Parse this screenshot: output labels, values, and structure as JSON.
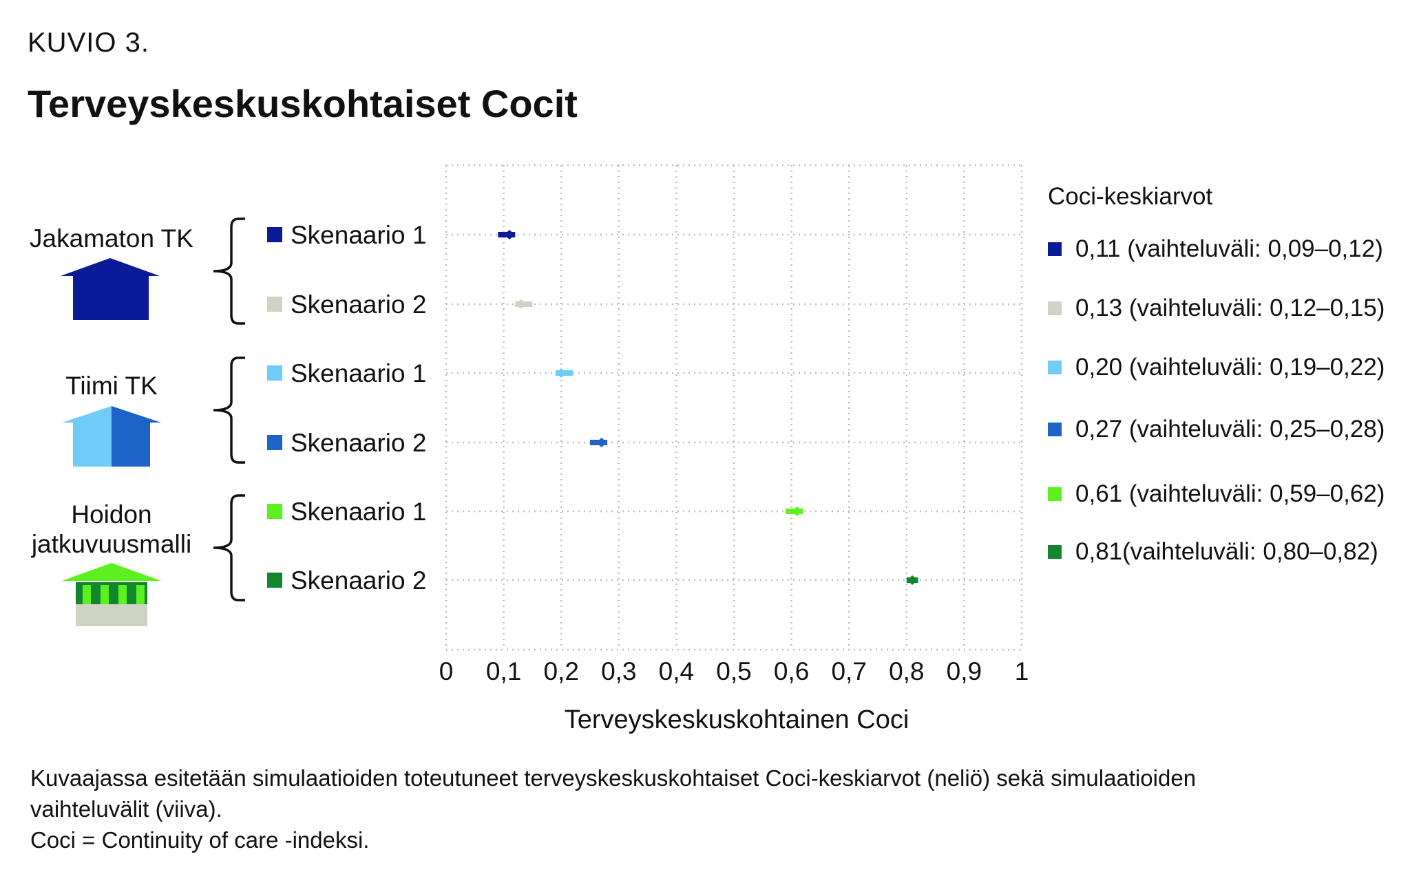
{
  "figure_label": "KUVIO 3.",
  "title": "Terveyskeskuskohtaiset Cocit",
  "groups": [
    {
      "label_lines": [
        "Jakamaton TK"
      ],
      "icon": "house-dark-blue-icon"
    },
    {
      "label_lines": [
        "Tiimi TK"
      ],
      "icon": "house-split-blue-icon"
    },
    {
      "label_lines": [
        "Hoidon",
        "jatkuvuusmalli"
      ],
      "icon": "pillared-building-green-icon"
    }
  ],
  "legend": {
    "title": "Coci-keskiarvot",
    "items": [
      {
        "label": "0,11 (vaihteluväli: 0,09–0,12)",
        "color": "#0b1a96"
      },
      {
        "label": "0,13 (vaihteluväli: 0,12–0,15)",
        "color": "#cfd3c3"
      },
      {
        "label": "0,20 (vaihteluväli: 0,19–0,22)",
        "color": "#6fcbf7"
      },
      {
        "label": "0,27 (vaihteluväli: 0,25–0,28)",
        "color": "#1e63c8"
      },
      {
        "label": "0,61 (vaihteluväli: 0,59–0,62)",
        "color": "#5cf01e"
      },
      {
        "label": "0,81(vaihteluväli: 0,80–0,82)",
        "color": "#14852f"
      }
    ]
  },
  "notes": [
    "Kuvaajassa esitetään simulaatioiden toteutuneet terveyskeskuskohtaiset Coci-keskiarvot (neliö) sekä simulaatioiden",
    "vaihteluvälit (viiva).",
    "Coci = Continuity of care -indeksi."
  ],
  "chart_data": {
    "type": "scatter",
    "title": "Terveyskeskuskohtaiset Cocit",
    "xlabel": "Terveyskeskuskohtainen Coci",
    "ylabel": "",
    "xlim": [
      0,
      1
    ],
    "xticks": [
      0,
      0.1,
      0.2,
      0.3,
      0.4,
      0.5,
      0.6,
      0.7,
      0.8,
      0.9,
      1
    ],
    "xtick_labels": [
      "0",
      "0,1",
      "0,2",
      "0,3",
      "0,4",
      "0,5",
      "0,6",
      "0,7",
      "0,8",
      "0,9",
      "1"
    ],
    "grid": true,
    "categories": [
      "Skenaario 1",
      "Skenaario 2",
      "Skenaario 1",
      "Skenaario 2",
      "Skenaario 1",
      "Skenaario 2"
    ],
    "series": [
      {
        "group": "Jakamaton TK",
        "scenario": "Skenaario 1",
        "mean": 0.11,
        "low": 0.09,
        "high": 0.12,
        "color": "#0b1a96"
      },
      {
        "group": "Jakamaton TK",
        "scenario": "Skenaario 2",
        "mean": 0.13,
        "low": 0.12,
        "high": 0.15,
        "color": "#cfd3c3"
      },
      {
        "group": "Tiimi TK",
        "scenario": "Skenaario 1",
        "mean": 0.2,
        "low": 0.19,
        "high": 0.22,
        "color": "#6fcbf7"
      },
      {
        "group": "Tiimi TK",
        "scenario": "Skenaario 2",
        "mean": 0.27,
        "low": 0.25,
        "high": 0.28,
        "color": "#1e63c8"
      },
      {
        "group": "Hoidon jatkuvuusmalli",
        "scenario": "Skenaario 1",
        "mean": 0.61,
        "low": 0.59,
        "high": 0.62,
        "color": "#5cf01e"
      },
      {
        "group": "Hoidon jatkuvuusmalli",
        "scenario": "Skenaario 2",
        "mean": 0.81,
        "low": 0.8,
        "high": 0.82,
        "color": "#14852f"
      }
    ],
    "legend_position": "right"
  }
}
